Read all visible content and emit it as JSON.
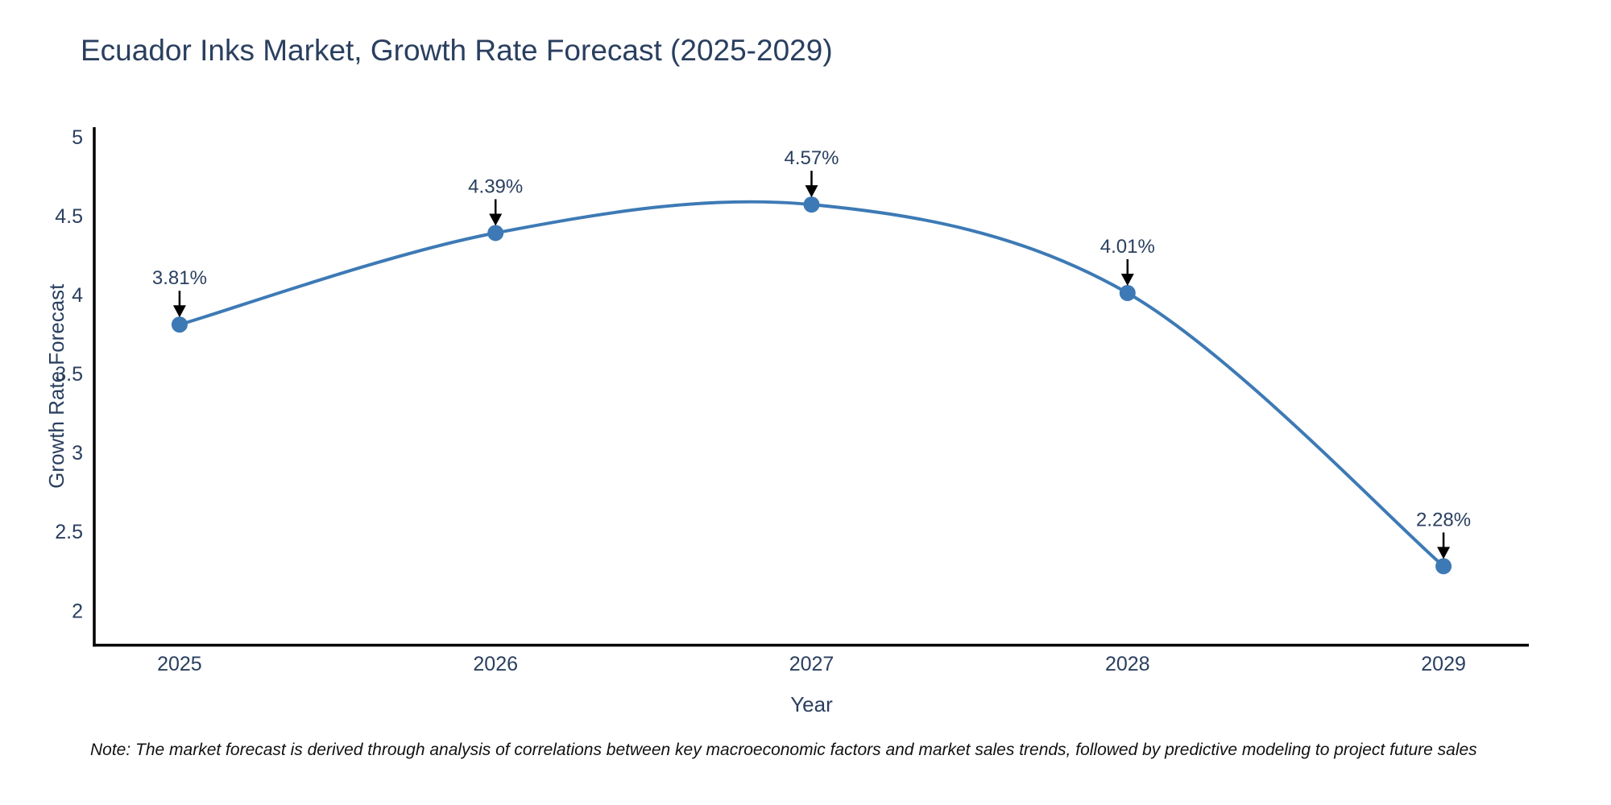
{
  "page": {
    "note": "Note: The market forecast is derived through analysis of correlations between key macroeconomic factors and market sales trends, followed by predictive modeling to project future sales"
  },
  "chart_data": {
    "type": "line",
    "title": "Ecuador Inks Market, Growth Rate Forecast (2025-2029)",
    "xlabel": "Year",
    "ylabel": "Growth Rate Forecast",
    "x": [
      2025,
      2026,
      2027,
      2028,
      2029
    ],
    "y": [
      3.81,
      4.39,
      4.57,
      4.01,
      2.28
    ],
    "point_labels": [
      "3.81%",
      "4.39%",
      "4.57%",
      "4.01%",
      "2.28%"
    ],
    "x_tick_labels": [
      "2025",
      "2026",
      "2027",
      "2028",
      "2029"
    ],
    "y_ticks": [
      2,
      2.5,
      3,
      3.5,
      4,
      4.5,
      5
    ],
    "xlim": [
      2024.73,
      2029.27
    ],
    "ylim": [
      1.78,
      5.06
    ],
    "line_shape": "spline",
    "grid": false,
    "legend": "none",
    "annotations": "arrow-down-to-point",
    "colors": {
      "line": "#3d7ab5",
      "marker": "#3d7ab5",
      "spine": "#000000",
      "axis_text": "#2a3f5f",
      "annotation_text": "#2a3f5f",
      "arrow": "#000000",
      "background": "#ffffff",
      "note_text": "#111111"
    }
  }
}
